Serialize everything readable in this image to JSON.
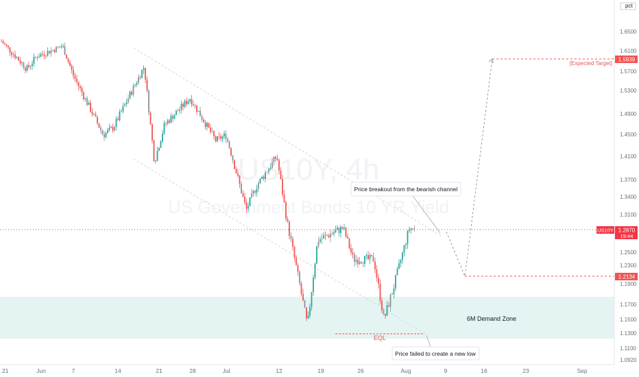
{
  "watermark": {
    "symbol": "US10Y, 4h",
    "description": "US Government Bonds 10 YR Yield"
  },
  "price_axis": {
    "unit_label": "pct",
    "current": {
      "symbol": "US10Y",
      "price": "1.2870",
      "countdown": "19:44"
    },
    "target_price": "1.5939",
    "pullback_price": "1.2134"
  },
  "annotations": {
    "breakout": "Price breakout from the bearish channel",
    "failed_low": "Price failed to create a new low",
    "eql": "EQL",
    "demand_zone": "6M Demand Zone",
    "expected_target": "[Expected Target]"
  },
  "colors": {
    "up": "#26a69a",
    "down": "#ef5350",
    "candle_neutral": "#8b8f99",
    "demand_zone": "#e4f4f3",
    "current_line": "#f23645",
    "text": "#131722",
    "axis_text": "#6a6d78"
  },
  "chart_data": {
    "type": "candlestick",
    "timeframe": "4h",
    "title": "US10Y, 4h",
    "subtitle": "US Government Bonds 10 YR Yield",
    "ylabel": "pct",
    "ylim": [
      1.075,
      1.675
    ],
    "y_ticks": [
      "1.6500",
      "1.6100",
      "1.5700",
      "1.5300",
      "1.4900",
      "1.4500",
      "1.4100",
      "1.3700",
      "1.3400",
      "1.3100",
      "1.2500",
      "1.2300",
      "1.1900",
      "1.1700",
      "1.1500",
      "1.1300",
      "1.1100",
      "1.0920"
    ],
    "x_ticks": [
      "21",
      "Jun",
      "7",
      "14",
      "21",
      "28",
      "Jul",
      "12",
      "19",
      "26",
      "Aug",
      "9",
      "16",
      "23",
      "Sep"
    ],
    "approx_path": [
      {
        "date": "2021-05-21",
        "yield": 1.63
      },
      {
        "date": "2021-05-26",
        "yield": 1.575
      },
      {
        "date": "2021-05-28",
        "yield": 1.6
      },
      {
        "date": "2021-06-02",
        "yield": 1.62
      },
      {
        "date": "2021-06-04",
        "yield": 1.565
      },
      {
        "date": "2021-06-10",
        "yield": 1.45
      },
      {
        "date": "2021-06-12",
        "yield": 1.465
      },
      {
        "date": "2021-06-18",
        "yield": 1.58
      },
      {
        "date": "2021-06-20",
        "yield": 1.4
      },
      {
        "date": "2021-06-22",
        "yield": 1.47
      },
      {
        "date": "2021-06-27",
        "yield": 1.52
      },
      {
        "date": "2021-07-02",
        "yield": 1.44
      },
      {
        "date": "2021-07-04",
        "yield": 1.45
      },
      {
        "date": "2021-07-08",
        "yield": 1.32
      },
      {
        "date": "2021-07-10",
        "yield": 1.36
      },
      {
        "date": "2021-07-14",
        "yield": 1.41
      },
      {
        "date": "2021-07-16",
        "yield": 1.3
      },
      {
        "date": "2021-07-20",
        "yield": 1.14
      },
      {
        "date": "2021-07-22",
        "yield": 1.27
      },
      {
        "date": "2021-07-27",
        "yield": 1.29
      },
      {
        "date": "2021-07-29",
        "yield": 1.24
      },
      {
        "date": "2021-08-02",
        "yield": 1.24
      },
      {
        "date": "2021-08-04",
        "yield": 1.15
      },
      {
        "date": "2021-08-06",
        "yield": 1.2
      },
      {
        "date": "2021-08-09",
        "yield": 1.29
      },
      {
        "date": "2021-08-10",
        "yield": 1.287
      }
    ],
    "projection": [
      {
        "date": "2021-08-10",
        "yield": 1.287
      },
      {
        "date": "2021-08-13",
        "yield": 1.2134
      },
      {
        "date": "2021-08-16",
        "yield": 1.5939
      }
    ],
    "bearish_channel": {
      "upper": [
        {
          "date": "2021-06-13",
          "yield": 1.615
        },
        {
          "date": "2021-08-09",
          "yield": 1.255
        }
      ],
      "lower": [
        {
          "date": "2021-06-13",
          "yield": 1.42
        },
        {
          "date": "2021-08-05",
          "yield": 1.125
        }
      ]
    },
    "eql_level": 1.13,
    "demand_zone": [
      1.121,
      1.182
    ],
    "current_price": 1.287,
    "target": 1.5939,
    "pullback": 1.2134
  }
}
